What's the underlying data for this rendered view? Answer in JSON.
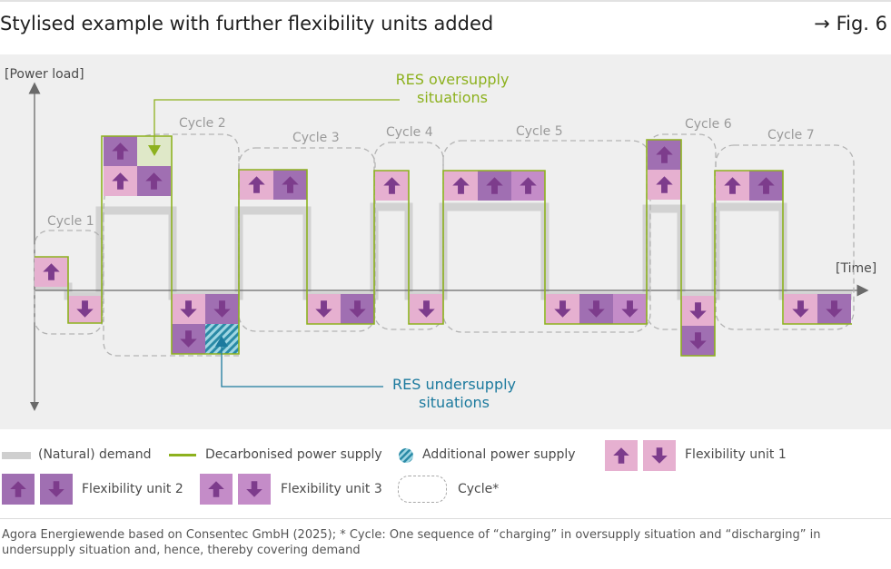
{
  "header": {
    "title": "Stylised example with further flexibility units added",
    "fig_label": "→ Fig. 6"
  },
  "diagram": {
    "y_axis_label": "[Power load]",
    "x_axis_label": "[Time]",
    "cycles": [
      "Cycle 1",
      "Cycle 2",
      "Cycle 3",
      "Cycle 4",
      "Cycle 5",
      "Cycle 6",
      "Cycle 7"
    ],
    "callouts": {
      "oversupply_line1": "RES oversupply",
      "oversupply_line2": "situations",
      "undersupply_line1": "RES undersupply",
      "undersupply_line2": "situations"
    },
    "colors": {
      "unit1": "#e6b0d0",
      "unit2": "#a06fb2",
      "unit3": "#c48cc8",
      "arrow": "#7d3c8c",
      "supply_line": "#8db11e",
      "demand": "#cfcfcf",
      "oversupply_text": "#8db11e",
      "undersupply_text": "#1c7a9e",
      "additional_supply": "#2a8aa6"
    }
  },
  "legend": {
    "demand": "(Natural) demand",
    "supply": "Decarbonised power supply",
    "additional": "Additional power supply",
    "unit1": "Flexibility unit 1",
    "unit2": "Flexibility unit 2",
    "unit3": "Flexibility unit 3",
    "cycle": "Cycle*"
  },
  "footer": {
    "source": "Agora Energiewende based on Consentec GmbH (2025); * Cycle: One sequence of “charging” in oversupply situation and “discharging” in undersupply situation and, hence, thereby covering demand"
  }
}
